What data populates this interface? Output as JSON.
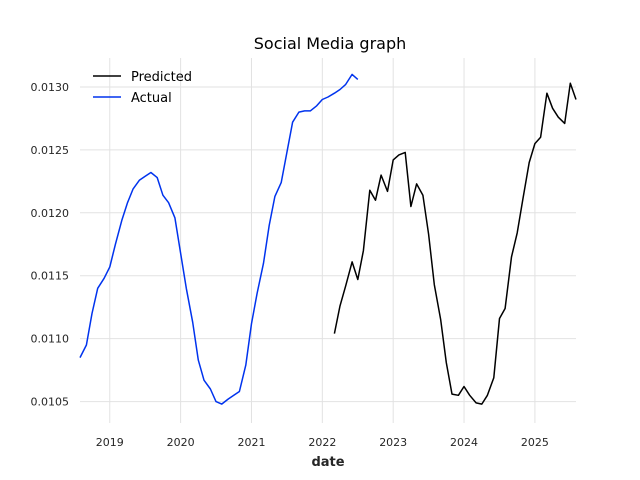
{
  "chart_data": {
    "type": "line",
    "title": "Social Media graph",
    "xlabel": "date",
    "ylabel": "",
    "xlim": [
      2018.58,
      2025.58
    ],
    "ylim": [
      0.01033,
      0.01323
    ],
    "x_ticks": [
      2019,
      2020,
      2021,
      2022,
      2023,
      2024,
      2025
    ],
    "x_tick_labels": [
      "2019",
      "2020",
      "2021",
      "2022",
      "2023",
      "2024",
      "2025"
    ],
    "y_ticks": [
      0.0105,
      0.011,
      0.0115,
      0.012,
      0.0125,
      0.013
    ],
    "y_tick_labels": [
      "0.0105",
      "0.0110",
      "0.0115",
      "0.0120",
      "0.0125",
      "0.0130"
    ],
    "grid": true,
    "legend_position": "top-left",
    "series": [
      {
        "name": "Predicted",
        "color": "#000000",
        "x": [
          2022.17,
          2022.25,
          2022.33,
          2022.42,
          2022.5,
          2022.58,
          2022.67,
          2022.75,
          2022.83,
          2022.92,
          2023.0,
          2023.08,
          2023.17,
          2023.25,
          2023.33,
          2023.42,
          2023.5,
          2023.58,
          2023.67,
          2023.75,
          2023.83,
          2023.92,
          2024.0,
          2024.08,
          2024.17,
          2024.25,
          2024.33,
          2024.42,
          2024.5,
          2024.58,
          2024.67,
          2024.75,
          2024.83,
          2024.92,
          2025.0,
          2025.08,
          2025.17,
          2025.25,
          2025.33,
          2025.42,
          2025.5,
          2025.58
        ],
        "y": [
          0.01104,
          0.01126,
          0.01142,
          0.01161,
          0.01147,
          0.0117,
          0.01218,
          0.0121,
          0.0123,
          0.01217,
          0.01242,
          0.01246,
          0.01248,
          0.01205,
          0.01223,
          0.01214,
          0.01183,
          0.01143,
          0.01115,
          0.01081,
          0.01056,
          0.01055,
          0.01062,
          0.01055,
          0.01049,
          0.01048,
          0.01055,
          0.01069,
          0.01116,
          0.01124,
          0.01165,
          0.01184,
          0.01211,
          0.0124,
          0.01255,
          0.0126,
          0.01295,
          0.01283,
          0.01276,
          0.01271,
          0.01303,
          0.0129
        ]
      },
      {
        "name": "Actual",
        "color": "#0033ee",
        "x": [
          2018.58,
          2018.67,
          2018.75,
          2018.83,
          2018.92,
          2019.0,
          2019.08,
          2019.17,
          2019.25,
          2019.33,
          2019.42,
          2019.5,
          2019.58,
          2019.67,
          2019.75,
          2019.83,
          2019.92,
          2020.0,
          2020.08,
          2020.17,
          2020.25,
          2020.33,
          2020.42,
          2020.5,
          2020.58,
          2020.67,
          2020.75,
          2020.83,
          2020.92,
          2021.0,
          2021.08,
          2021.17,
          2021.25,
          2021.33,
          2021.42,
          2021.5,
          2021.58,
          2021.67,
          2021.75,
          2021.83,
          2021.92,
          2022.0,
          2022.08,
          2022.17,
          2022.25,
          2022.33,
          2022.42,
          2022.5
        ],
        "y": [
          0.01085,
          0.01095,
          0.0112,
          0.0114,
          0.01148,
          0.01157,
          0.01175,
          0.01194,
          0.01208,
          0.01219,
          0.01226,
          0.01229,
          0.01232,
          0.01228,
          0.01214,
          0.01208,
          0.01196,
          0.01168,
          0.0114,
          0.01113,
          0.01083,
          0.01067,
          0.0106,
          0.0105,
          0.01048,
          0.01052,
          0.01055,
          0.01058,
          0.01079,
          0.01112,
          0.01136,
          0.0116,
          0.0119,
          0.01213,
          0.01224,
          0.01248,
          0.01272,
          0.0128,
          0.01281,
          0.01281,
          0.01285,
          0.0129,
          0.01292,
          0.01295,
          0.01298,
          0.01302,
          0.0131,
          0.01306
        ]
      }
    ]
  }
}
